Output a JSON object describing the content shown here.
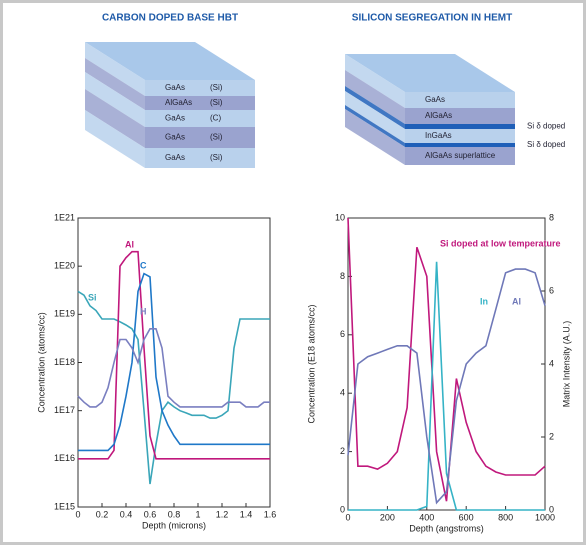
{
  "diagrams": [
    {
      "title": "CARBON DOPED BASE HBT",
      "layers": [
        {
          "material": "GaAs",
          "dopant": "(Si)"
        },
        {
          "material": "AlGaAs",
          "dopant": "(Si)"
        },
        {
          "material": "GaAs",
          "dopant": "(C)"
        },
        {
          "material": "GaAs",
          "dopant": "(Si)"
        },
        {
          "material": "GaAs",
          "dopant": "(Si)"
        }
      ]
    },
    {
      "title": "SILICON SEGREGATION IN HEMT",
      "layers": [
        {
          "material": "GaAs"
        },
        {
          "material": "AlGaAs"
        },
        {
          "material": "InGaAs"
        },
        {
          "material": "AlGaAs superlattice"
        }
      ],
      "notes": [
        "Si δ doped",
        "Si δ doped"
      ]
    }
  ],
  "chart_data": [
    {
      "type": "line",
      "yscale": "log",
      "x_label": "Depth (microns)",
      "y_label": "Concentration (atoms/cc)",
      "x": [
        0,
        0.05,
        0.1,
        0.15,
        0.2,
        0.25,
        0.3,
        0.35,
        0.4,
        0.45,
        0.5,
        0.55,
        0.6,
        0.65,
        0.7,
        0.75,
        0.8,
        0.85,
        0.9,
        0.95,
        1.0,
        1.05,
        1.1,
        1.15,
        1.2,
        1.25,
        1.3,
        1.35,
        1.4,
        1.45,
        1.5,
        1.55,
        1.6
      ],
      "xlim": [
        0,
        1.6
      ],
      "xticks": [
        0,
        0.2,
        0.4,
        0.6,
        0.8,
        1.0,
        1.2,
        1.4,
        1.6
      ],
      "ylim": [
        1000000000000000.0,
        1e+21
      ],
      "yticks": [
        {
          "value": 1000000000000000.0,
          "label": "1E15"
        },
        {
          "value": 1e+16,
          "label": "1E16"
        },
        {
          "value": 1e+17,
          "label": "1E17"
        },
        {
          "value": 1e+18,
          "label": "1E18"
        },
        {
          "value": 1e+19,
          "label": "1E19"
        },
        {
          "value": 1e+20,
          "label": "1E20"
        },
        {
          "value": 1e+21,
          "label": "1E21"
        }
      ],
      "series": [
        {
          "name": "Si",
          "color": "#3aa6b9",
          "values": [
            3e+19,
            2.5e+19,
            1.5e+19,
            1.2e+19,
            8e+18,
            8e+18,
            8e+18,
            7e+18,
            6e+18,
            5e+18,
            3e+18,
            1e+17,
            3000000000000000.0,
            2e+16,
            1e+17,
            1.5e+17,
            1.2e+17,
            1e+17,
            9e+16,
            8e+16,
            8e+16,
            8e+16,
            7e+16,
            7e+16,
            8e+16,
            1e+17,
            2e+18,
            8e+18,
            8e+18,
            8e+18,
            8e+18,
            8e+18,
            8e+18
          ]
        },
        {
          "name": "Al",
          "color": "#c0187c",
          "values": [
            1e+16,
            1e+16,
            1e+16,
            1e+16,
            1e+16,
            1e+16,
            1.5e+16,
            1e+20,
            1.5e+20,
            2e+20,
            2e+20,
            2e+18,
            3e+16,
            1e+16,
            1e+16,
            1e+16,
            1e+16,
            1e+16,
            1e+16,
            1e+16,
            1e+16,
            1e+16,
            1e+16,
            1e+16,
            1e+16,
            1e+16,
            1e+16,
            1e+16,
            1e+16,
            1e+16,
            1e+16,
            1e+16,
            1e+16
          ]
        },
        {
          "name": "C",
          "color": "#1f78c8",
          "values": [
            1.5e+16,
            1.5e+16,
            1.5e+16,
            1.5e+16,
            1.5e+16,
            1.5e+16,
            2e+16,
            5e+16,
            2e+17,
            1e+18,
            3e+19,
            7e+19,
            6e+19,
            5e+17,
            1e+17,
            5e+16,
            3e+16,
            2e+16,
            2e+16,
            2e+16,
            2e+16,
            2e+16,
            2e+16,
            2e+16,
            2e+16,
            2e+16,
            2e+16,
            2e+16,
            2e+16,
            2e+16,
            2e+16,
            2e+16,
            2e+16
          ]
        },
        {
          "name": "H",
          "color": "#7a7fc0",
          "values": [
            2e+17,
            1.5e+17,
            1.2e+17,
            1.2e+17,
            1.5e+17,
            3e+17,
            1e+18,
            3e+18,
            3e+18,
            2e+18,
            1e+18,
            3e+18,
            5e+18,
            5e+18,
            2e+18,
            2e+17,
            1.5e+17,
            1.2e+17,
            1.2e+17,
            1.2e+17,
            1.2e+17,
            1.2e+17,
            1.2e+17,
            1.2e+17,
            1.2e+17,
            1.5e+17,
            1.5e+17,
            1.5e+17,
            1.2e+17,
            1.2e+17,
            1.2e+17,
            1.5e+17,
            1.5e+17
          ]
        }
      ]
    },
    {
      "type": "line",
      "x_label": "Depth (angstroms)",
      "y_label": "Concentration (E18 atoms/cc)",
      "y2_label": "Matrix Intensity (A.U.)",
      "x": [
        0,
        50,
        100,
        150,
        200,
        250,
        300,
        350,
        400,
        450,
        500,
        550,
        600,
        650,
        700,
        750,
        800,
        850,
        900,
        950,
        1000
      ],
      "xlim": [
        0,
        1000
      ],
      "xticks": [
        0,
        200,
        400,
        600,
        800,
        1000
      ],
      "ylim": [
        0,
        10
      ],
      "yticks": [
        0,
        2,
        4,
        6,
        8,
        10
      ],
      "y2lim": [
        0,
        8
      ],
      "y2ticks": [
        0,
        2,
        4,
        6,
        8
      ],
      "series": [
        {
          "name": "Si doped at low temperature",
          "color": "#c0187c",
          "values": [
            10,
            1.5,
            1.5,
            1.4,
            1.6,
            2,
            3.5,
            9,
            8,
            2,
            0.3,
            4.5,
            3,
            2,
            1.5,
            1.3,
            1.2,
            1.2,
            1.2,
            1.2,
            1.5
          ]
        },
        {
          "name": "In",
          "color": "#35b3c6",
          "axis": "y2",
          "values": [
            0,
            0,
            0,
            0,
            0,
            0,
            0,
            0,
            0.1,
            6.8,
            1,
            0,
            0,
            0,
            0,
            0,
            0,
            0,
            0,
            0,
            0
          ]
        },
        {
          "name": "Al",
          "color": "#6f78b8",
          "axis": "y2",
          "values": [
            1.5,
            4,
            4.2,
            4.3,
            4.4,
            4.5,
            4.5,
            4.3,
            2,
            0.2,
            0.5,
            3,
            4,
            4.3,
            4.5,
            5.5,
            6.5,
            6.6,
            6.6,
            6.5,
            5.6
          ]
        }
      ]
    }
  ]
}
